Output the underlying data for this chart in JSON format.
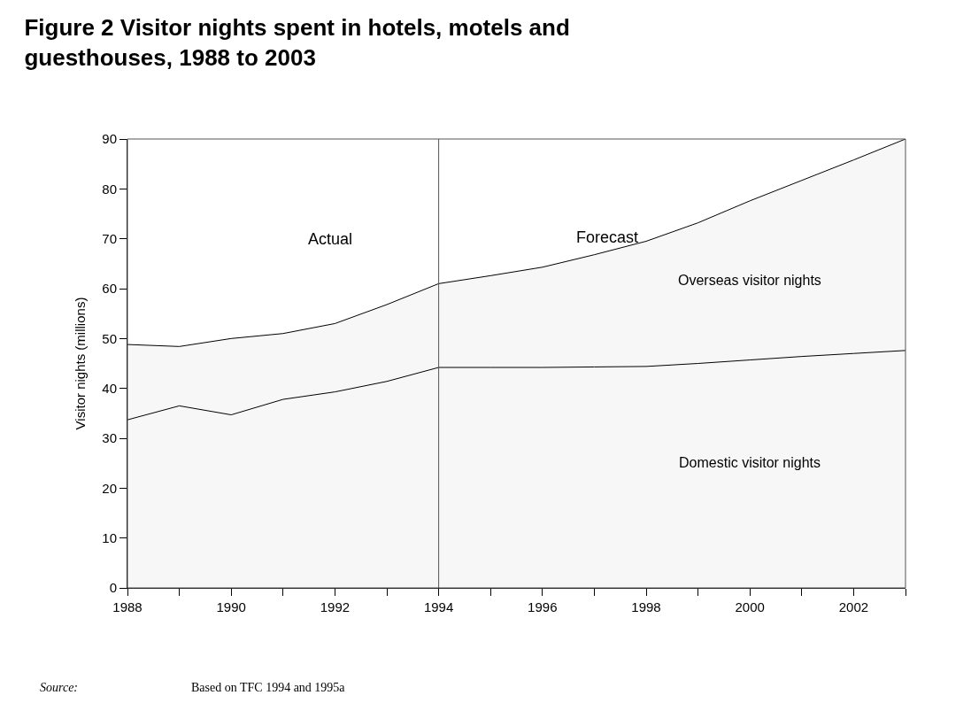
{
  "chart_data": {
    "type": "area",
    "stacked": true,
    "title": "Figure 2 Visitor nights spent in hotels, motels and guesthouses, 1988 to 2003",
    "ylabel": "Visitor nights (millions)",
    "x": [
      1988,
      1989,
      1990,
      1991,
      1992,
      1993,
      1994,
      1995,
      1996,
      1997,
      1998,
      1999,
      2000,
      2001,
      2002,
      2003
    ],
    "series": [
      {
        "name": "Domestic visitor nights",
        "color": "#f7f7f7",
        "values": [
          33.7,
          36.5,
          34.7,
          37.8,
          39.3,
          41.4,
          44.2,
          44.2,
          44.2,
          44.3,
          44.4,
          45.0,
          45.7,
          46.4,
          47.0,
          47.6
        ]
      },
      {
        "name": "Overseas visitor nights",
        "color": "#f7f7f7",
        "values": [
          15.1,
          11.9,
          15.3,
          13.2,
          13.7,
          15.4,
          16.8,
          18.4,
          20.1,
          22.5,
          25.1,
          28.2,
          31.9,
          35.3,
          38.8,
          42.4
        ]
      }
    ],
    "xlim": [
      1988,
      2003
    ],
    "xticks": [
      1988,
      {
        "value": 1989,
        "label": null
      },
      1990,
      {
        "value": 1991,
        "label": null
      },
      1992,
      {
        "value": 1993,
        "label": null
      },
      1994,
      {
        "value": 1995,
        "label": null
      },
      1996,
      {
        "value": 1997,
        "label": null
      },
      1998,
      {
        "value": 1999,
        "label": null
      },
      2000,
      {
        "value": 2001,
        "label": null
      },
      2002,
      {
        "value": 2003,
        "label": null
      }
    ],
    "ylim": [
      0,
      90
    ],
    "yticks": [
      0,
      10,
      20,
      30,
      40,
      50,
      60,
      70,
      80,
      90
    ],
    "ref_lines": [
      {
        "axis": "x",
        "value": 1994,
        "color": "#555555"
      }
    ],
    "annotations": [
      "Actual",
      "Forecast",
      "Source:",
      "Based on TFC 1994 and 1995a"
    ],
    "legend": false
  }
}
